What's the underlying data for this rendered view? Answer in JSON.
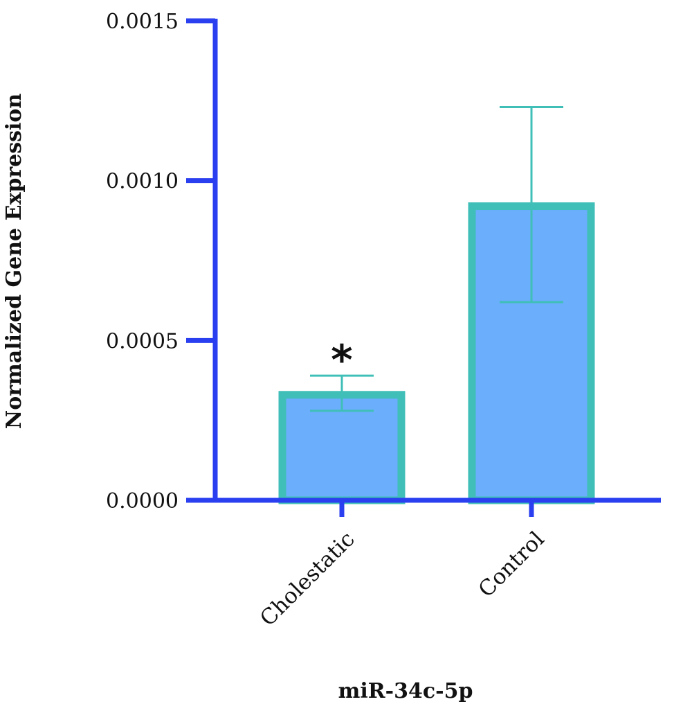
{
  "chart_data": {
    "type": "bar",
    "categories": [
      "Cholestatic",
      "Control"
    ],
    "values": [
      0.00033,
      0.00092
    ],
    "error_upper": [
      0.00039,
      0.00123
    ],
    "error_lower": [
      0.00028,
      0.00062
    ],
    "annotations": [
      "*",
      ""
    ],
    "title": "",
    "xlabel": "miR-34c-5p",
    "ylabel": "Normalized Gene Expression",
    "ylim": [
      0,
      0.0015
    ],
    "yticks": [
      "0.0000",
      "0.0005",
      "0.0010",
      "0.0015"
    ],
    "grid": false,
    "colors": {
      "axis": "#2a3ff0",
      "bar_fill": "#6aaefc",
      "bar_border": "#40bfb8",
      "error_bar": "#40bfb8"
    }
  }
}
